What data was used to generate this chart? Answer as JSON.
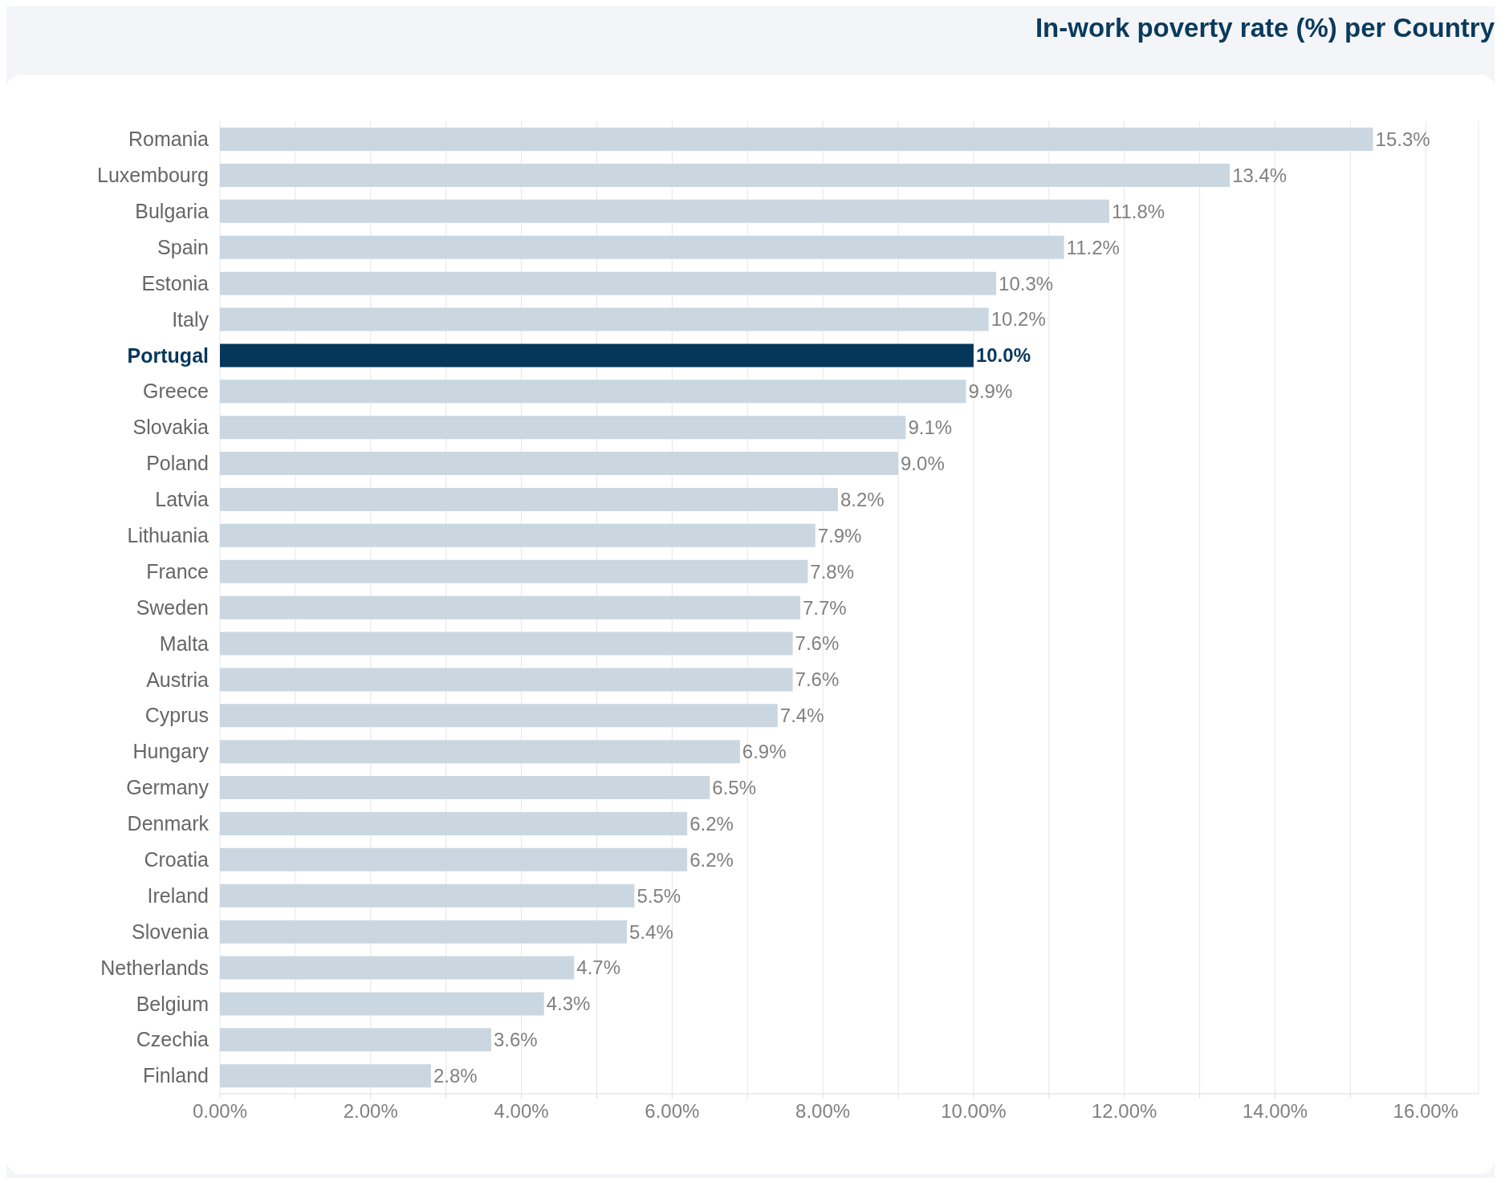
{
  "chart_data": {
    "type": "bar",
    "orientation": "horizontal",
    "title": "In-work poverty rate (%) per Country",
    "categories": [
      "Romania",
      "Luxembourg",
      "Bulgaria",
      "Spain",
      "Estonia",
      "Italy",
      "Portugal",
      "Greece",
      "Slovakia",
      "Poland",
      "Latvia",
      "Lithuania",
      "France",
      "Sweden",
      "Malta",
      "Austria",
      "Cyprus",
      "Hungary",
      "Germany",
      "Denmark",
      "Croatia",
      "Ireland",
      "Slovenia",
      "Netherlands",
      "Belgium",
      "Czechia",
      "Finland"
    ],
    "values": [
      15.3,
      13.4,
      11.8,
      11.2,
      10.3,
      10.2,
      10.0,
      9.9,
      9.1,
      9.0,
      8.2,
      7.9,
      7.8,
      7.7,
      7.6,
      7.6,
      7.4,
      6.9,
      6.5,
      6.2,
      6.2,
      5.5,
      5.4,
      4.7,
      4.3,
      3.6,
      2.8
    ],
    "value_labels": [
      "15.3%",
      "13.4%",
      "11.8%",
      "11.2%",
      "10.3%",
      "10.2%",
      "10.0%",
      "9.9%",
      "9.1%",
      "9.0%",
      "8.2%",
      "7.9%",
      "7.8%",
      "7.7%",
      "7.6%",
      "7.6%",
      "7.4%",
      "6.9%",
      "6.5%",
      "6.2%",
      "6.2%",
      "5.5%",
      "5.4%",
      "4.7%",
      "4.3%",
      "3.6%",
      "2.8%"
    ],
    "colors": [
      "#cbd7e0",
      "#cbd7e0",
      "#cbd7e0",
      "#cbd7e0",
      "#cbd7e0",
      "#cbd7e0",
      "#06375a",
      "#cbd7e0",
      "#cbd7e0",
      "#cbd7e0",
      "#cbd7e0",
      "#cbd7e0",
      "#cbd7e0",
      "#cbd7e0",
      "#cbd7e0",
      "#cbd7e0",
      "#cbd7e0",
      "#cbd7e0",
      "#cbd7e0",
      "#cbd7e0",
      "#cbd7e0",
      "#cbd7e0",
      "#cbd7e0",
      "#cbd7e0",
      "#cbd7e0",
      "#cbd7e0",
      "#cbd7e0"
    ],
    "xlim": [
      0,
      16.7
    ],
    "xticks": [
      {
        "value": 0,
        "label": "0.00%"
      },
      {
        "value": 1,
        "label": null
      },
      {
        "value": 2,
        "label": "2.00%"
      },
      {
        "value": 3,
        "label": null
      },
      {
        "value": 4,
        "label": "4.00%"
      },
      {
        "value": 5,
        "label": null
      },
      {
        "value": 6,
        "label": "6.00%"
      },
      {
        "value": 7,
        "label": null
      },
      {
        "value": 8,
        "label": "8.00%"
      },
      {
        "value": 9,
        "label": null
      },
      {
        "value": 10,
        "label": "10.00%"
      },
      {
        "value": 11,
        "label": null
      },
      {
        "value": 12,
        "label": "12.00%"
      },
      {
        "value": 13,
        "label": null
      },
      {
        "value": 14,
        "label": "14.00%"
      },
      {
        "value": 15,
        "label": null
      },
      {
        "value": 16,
        "label": "16.00%"
      }
    ],
    "grid": "x",
    "legend": false
  }
}
